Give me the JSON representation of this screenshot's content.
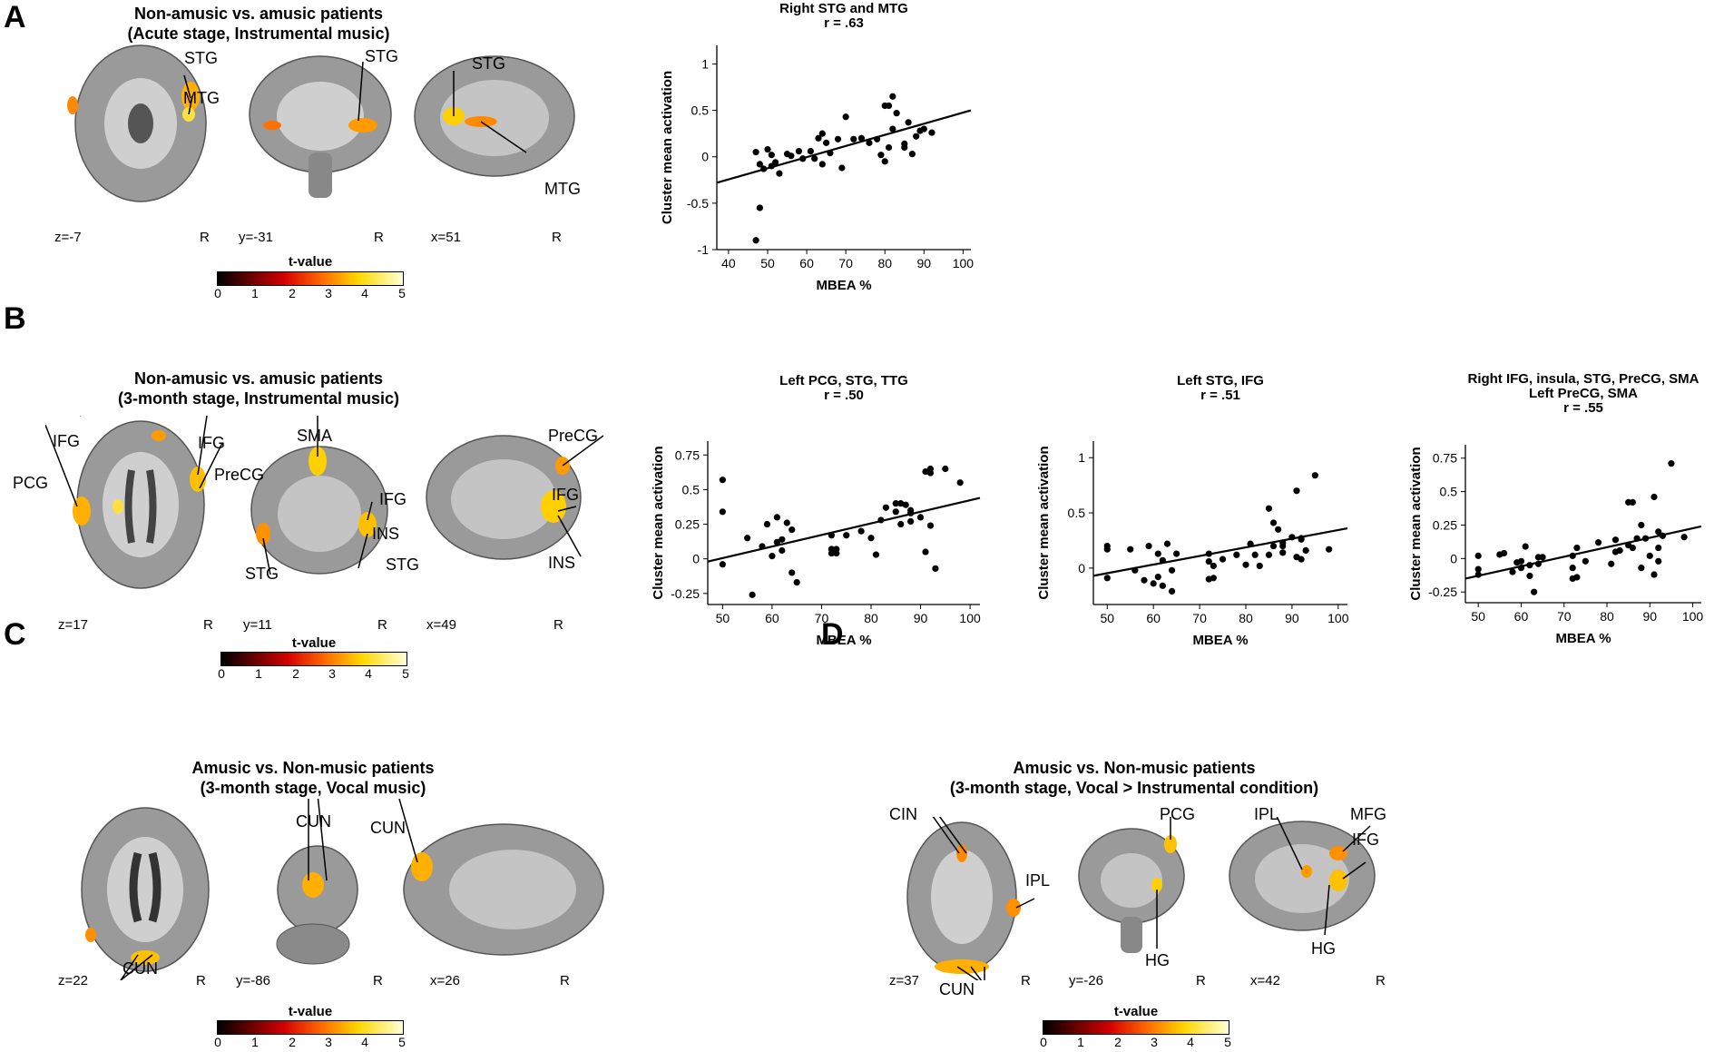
{
  "panelA": {
    "letter": "A",
    "title": [
      "Non-amusic vs. amusic patients",
      "(Acute stage, Instrumental music)"
    ],
    "coords": [
      "z=-7",
      "y=-31",
      "x=51"
    ],
    "r_marker": "R",
    "regions": [
      "STG",
      "MTG",
      "STG",
      "STG",
      "MTG"
    ],
    "colorbar": {
      "title": "t-value",
      "ticks": [
        "0",
        "1",
        "2",
        "3",
        "4",
        "5"
      ]
    }
  },
  "panelB": {
    "letter": "B",
    "title": [
      "Non-amusic vs. amusic patients",
      "(3-month stage, Instrumental music)"
    ],
    "coords": [
      "z=17",
      "y=11",
      "x=49"
    ],
    "r_marker": "R",
    "regions": [
      "IFG",
      "IFG",
      "PCG",
      "PreCG",
      "SMA",
      "IFG",
      "INS",
      "STG",
      "STG",
      "PreCG",
      "IFG",
      "INS"
    ],
    "colorbar": {
      "title": "t-value",
      "ticks": [
        "0",
        "1",
        "2",
        "3",
        "4",
        "5"
      ]
    }
  },
  "panelC": {
    "letter": "C",
    "title": [
      "Amusic vs. Non-music patients",
      "(3-month stage, Vocal music)"
    ],
    "coords": [
      "z=22",
      "y=-86",
      "x=26"
    ],
    "r_marker": "R",
    "regions": [
      "CUN",
      "CUN",
      "CUN"
    ],
    "colorbar": {
      "title": "t-value",
      "ticks": [
        "0",
        "1",
        "2",
        "3",
        "4",
        "5"
      ]
    }
  },
  "panelD": {
    "letter": "D",
    "title": [
      "Amusic vs. Non-music patients",
      "(3-month stage, Vocal > Instrumental condition)"
    ],
    "coords": [
      "z=37",
      "y=-26",
      "x=42"
    ],
    "r_marker": "R",
    "regions": [
      "CIN",
      "PCG",
      "IPL",
      "CUN",
      "HG",
      "IPL",
      "MFG",
      "IFG",
      "HG"
    ],
    "colorbar": {
      "title": "t-value",
      "ticks": [
        "0",
        "1",
        "2",
        "3",
        "4",
        "5"
      ]
    }
  },
  "colors": {
    "heat_low": "#6a0000",
    "heat_mid": "#ff6a00",
    "heat_high": "#ffd800"
  },
  "chart_data": [
    {
      "type": "scatter",
      "title": "Right STG and MTG",
      "subtitle": "r = .63",
      "xlabel": "MBEA %",
      "ylabel": "Cluster mean activation",
      "xlim": [
        37,
        102
      ],
      "ylim": [
        -1,
        1.2
      ],
      "xticks": [
        40,
        50,
        60,
        70,
        80,
        90,
        100
      ],
      "yticks": [
        -1,
        -0.5,
        0,
        0.5,
        1
      ],
      "yticklabels": [
        "-1",
        "-0.5",
        "0",
        "0.5",
        "1"
      ],
      "fit": {
        "x": [
          37,
          102
        ],
        "y": [
          -0.28,
          0.5
        ]
      },
      "x": [
        47,
        47,
        48,
        48,
        49,
        50,
        51,
        51,
        52,
        53,
        55,
        56,
        58,
        59,
        61,
        62,
        63,
        64,
        64,
        65,
        66,
        68,
        69,
        70,
        72,
        74,
        76,
        78,
        79,
        80,
        80,
        81,
        81,
        82,
        82,
        83,
        85,
        85,
        86,
        87,
        88,
        89,
        90,
        92
      ],
      "y": [
        -0.9,
        0.05,
        -0.08,
        -0.55,
        -0.13,
        0.08,
        -0.1,
        0.02,
        -0.06,
        -0.18,
        0.03,
        0.01,
        0.06,
        -0.02,
        0.06,
        -0.02,
        0.2,
        0.25,
        -0.08,
        0.15,
        0.04,
        0.19,
        -0.12,
        0.43,
        0.19,
        0.2,
        0.15,
        0.19,
        0.02,
        -0.05,
        0.55,
        0.1,
        0.55,
        0.65,
        0.3,
        0.47,
        0.1,
        0.14,
        0.37,
        0.03,
        0.22,
        0.28,
        0.3,
        0.26
      ]
    },
    {
      "type": "scatter",
      "title": "Left PCG, STG, TTG",
      "subtitle": "r = .50",
      "xlabel": "MBEA %",
      "ylabel": "Cluster mean activation",
      "xlim": [
        47,
        102
      ],
      "ylim": [
        -0.33,
        0.85
      ],
      "xticks": [
        50,
        60,
        70,
        80,
        90,
        100
      ],
      "yticks": [
        -0.25,
        0,
        0.25,
        0.5,
        0.75
      ],
      "yticklabels": [
        "-0.25",
        "0",
        "0.25",
        "0.5",
        "0.75"
      ],
      "fit": {
        "x": [
          47,
          102
        ],
        "y": [
          -0.02,
          0.44
        ]
      },
      "x": [
        50,
        50,
        50,
        55,
        56,
        58,
        59,
        60,
        61,
        61,
        62,
        62,
        63,
        64,
        64,
        65,
        72,
        72,
        72,
        73,
        73,
        75,
        78,
        80,
        81,
        82,
        83,
        85,
        85,
        86,
        86,
        87,
        88,
        88,
        88,
        90,
        91,
        91,
        92,
        92,
        92,
        93,
        95,
        98
      ],
      "y": [
        0.57,
        0.34,
        -0.04,
        0.15,
        -0.26,
        0.09,
        0.25,
        0.02,
        0.12,
        0.3,
        0.14,
        0.06,
        0.26,
        0.21,
        -0.1,
        -0.17,
        0.04,
        0.07,
        0.17,
        0.07,
        0.04,
        0.17,
        0.2,
        0.15,
        0.03,
        0.28,
        0.37,
        0.4,
        0.34,
        0.4,
        0.25,
        0.39,
        0.35,
        0.33,
        0.27,
        0.3,
        0.05,
        0.63,
        0.65,
        0.62,
        0.24,
        -0.07,
        0.65,
        0.55
      ]
    },
    {
      "type": "scatter",
      "title": "Left STG, IFG",
      "subtitle": "r = .51",
      "xlabel": "MBEA %",
      "ylabel": "Cluster mean activation",
      "xlim": [
        47,
        102
      ],
      "ylim": [
        -0.33,
        1.15
      ],
      "xticks": [
        50,
        60,
        70,
        80,
        90,
        100
      ],
      "yticks": [
        0,
        0.5,
        1
      ],
      "yticklabels": [
        "0",
        "0.5",
        "1"
      ],
      "fit": {
        "x": [
          47,
          102
        ],
        "y": [
          -0.07,
          0.36
        ]
      },
      "x": [
        50,
        50,
        50,
        55,
        56,
        58,
        59,
        60,
        61,
        61,
        62,
        62,
        63,
        64,
        64,
        65,
        72,
        72,
        72,
        73,
        73,
        75,
        78,
        80,
        81,
        82,
        83,
        85,
        85,
        86,
        86,
        87,
        88,
        88,
        88,
        90,
        91,
        91,
        92,
        92,
        92,
        93,
        95,
        98
      ],
      "y": [
        0.2,
        0.17,
        -0.09,
        0.17,
        -0.02,
        -0.11,
        0.2,
        -0.14,
        -0.08,
        0.13,
        0.07,
        -0.16,
        0.22,
        -0.02,
        -0.21,
        0.13,
        0.13,
        -0.1,
        0.06,
        0.02,
        -0.09,
        0.08,
        0.12,
        0.03,
        0.22,
        0.12,
        0.02,
        0.12,
        0.54,
        0.41,
        0.2,
        0.35,
        0.2,
        0.14,
        0.23,
        0.28,
        0.1,
        0.7,
        0.27,
        0.08,
        0.26,
        0.16,
        0.84,
        0.17
      ]
    },
    {
      "type": "scatter",
      "title": "Right IFG, insula, STG, PreCG, SMA",
      "subtitle": "Left PreCG, SMA",
      "note": "r = .55",
      "xlabel": "MBEA %",
      "ylabel": "Cluster mean activation",
      "xlim": [
        47,
        102
      ],
      "ylim": [
        -0.33,
        0.85
      ],
      "xticks": [
        50,
        60,
        70,
        80,
        90,
        100
      ],
      "yticks": [
        -0.25,
        0,
        0.25,
        0.5,
        0.75
      ],
      "yticklabels": [
        "-0.25",
        "0",
        "0.25",
        "0.5",
        "0.75"
      ],
      "fit": {
        "x": [
          47,
          102
        ],
        "y": [
          -0.15,
          0.24
        ]
      },
      "x": [
        50,
        50,
        50,
        55,
        56,
        58,
        59,
        60,
        60,
        61,
        62,
        62,
        63,
        64,
        64,
        65,
        72,
        72,
        72,
        73,
        73,
        75,
        78,
        81,
        82,
        82,
        83,
        85,
        85,
        86,
        86,
        87,
        88,
        88,
        89,
        90,
        91,
        91,
        92,
        92,
        92,
        93,
        95,
        98
      ],
      "y": [
        -0.12,
        -0.08,
        0.02,
        0.03,
        0.04,
        -0.1,
        -0.03,
        -0.02,
        -0.07,
        0.09,
        -0.13,
        -0.05,
        -0.25,
        0.01,
        -0.04,
        0.01,
        -0.15,
        -0.07,
        0.02,
        0.08,
        -0.14,
        -0.02,
        0.12,
        -0.04,
        0.05,
        0.14,
        0.06,
        0.42,
        0.1,
        0.42,
        0.08,
        0.15,
        0.25,
        -0.07,
        0.15,
        0.02,
        -0.12,
        0.46,
        0.2,
        -0.02,
        0.08,
        0.17,
        0.71,
        0.16
      ]
    }
  ]
}
